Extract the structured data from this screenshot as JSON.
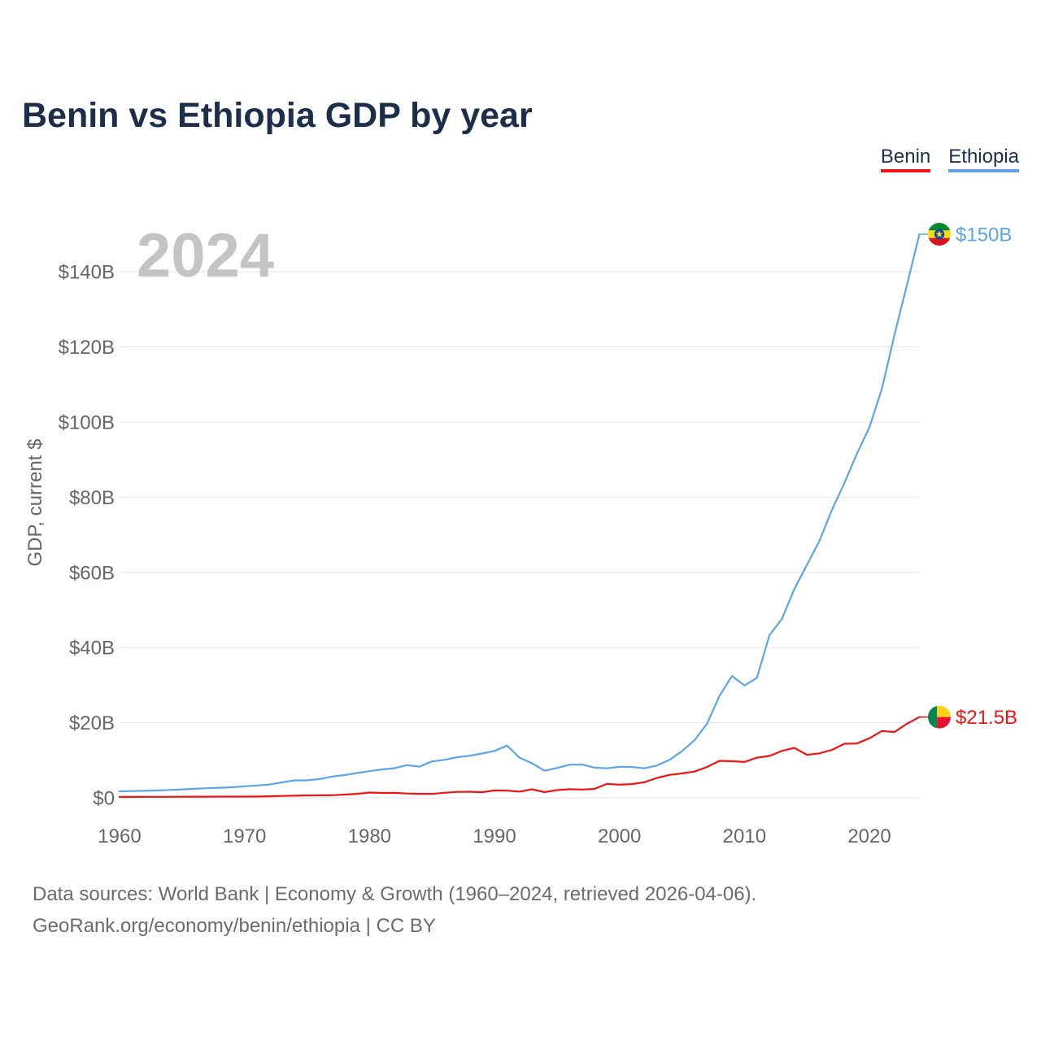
{
  "year_watermark": "2024",
  "source": {
    "line1": "Data sources: World Bank | Economy & Growth (1960–2024, retrieved 2026-04-06).",
    "line2": "GeoRank.org/economy/benin/ethiopia | CC BY"
  },
  "colors": {
    "title": "#1c2e4a",
    "tick_text": "#666666",
    "grid": "#e6e6e6",
    "watermark": "#c4c4c4",
    "source_text": "#6b6b6b"
  },
  "chart_data": {
    "type": "line",
    "title": "Benin vs Ethiopia GDP by year",
    "xlabel": "",
    "ylabel": "GDP, current $",
    "xlim": [
      1960,
      2024
    ],
    "ylim": [
      0,
      150
    ],
    "grid": true,
    "xtick_values": [
      1960,
      1970,
      1980,
      1990,
      2000,
      2010,
      2020
    ],
    "xtick_labels": [
      "1960",
      "1970",
      "1980",
      "1990",
      "2000",
      "2010",
      "2020"
    ],
    "ytick_values": [
      0,
      20,
      40,
      60,
      80,
      100,
      120,
      140
    ],
    "ytick_labels": [
      "$0",
      "$20B",
      "$40B",
      "$60B",
      "$80B",
      "$100B",
      "$120B",
      "$140B"
    ],
    "x": [
      1960,
      1961,
      1962,
      1963,
      1964,
      1965,
      1966,
      1967,
      1968,
      1969,
      1970,
      1971,
      1972,
      1973,
      1974,
      1975,
      1976,
      1977,
      1978,
      1979,
      1980,
      1981,
      1982,
      1983,
      1984,
      1985,
      1986,
      1987,
      1988,
      1989,
      1990,
      1991,
      1992,
      1993,
      1994,
      1995,
      1996,
      1997,
      1998,
      1999,
      2000,
      2001,
      2002,
      2003,
      2004,
      2005,
      2006,
      2007,
      2008,
      2009,
      2010,
      2011,
      2012,
      2013,
      2014,
      2015,
      2016,
      2017,
      2018,
      2019,
      2020,
      2021,
      2022,
      2023,
      2024
    ],
    "series": [
      {
        "name": "Benin",
        "color": "#f01414",
        "flag_icon": "benin-flag-icon",
        "end_label": "$21.5B",
        "values": [
          0.23,
          0.24,
          0.25,
          0.26,
          0.27,
          0.29,
          0.3,
          0.31,
          0.32,
          0.33,
          0.33,
          0.35,
          0.41,
          0.5,
          0.56,
          0.66,
          0.67,
          0.7,
          0.86,
          1.05,
          1.4,
          1.29,
          1.31,
          1.14,
          1.05,
          1.05,
          1.34,
          1.57,
          1.63,
          1.5,
          1.96,
          1.92,
          1.65,
          2.27,
          1.52,
          2.05,
          2.3,
          2.2,
          2.38,
          3.7,
          3.5,
          3.65,
          4.15,
          5.3,
          6.1,
          6.5,
          7.0,
          8.2,
          9.85,
          9.75,
          9.55,
          10.7,
          11.15,
          12.5,
          13.3,
          11.45,
          11.85,
          12.75,
          14.4,
          14.45,
          15.85,
          17.8,
          17.5,
          19.7,
          21.5
        ]
      },
      {
        "name": "Ethiopia",
        "color": "#5da5e6",
        "flag_icon": "ethiopia-flag-icon",
        "end_label": "$150B",
        "values": [
          1.73,
          1.8,
          1.87,
          1.95,
          2.1,
          2.25,
          2.4,
          2.55,
          2.68,
          2.82,
          3.05,
          3.3,
          3.55,
          4.1,
          4.65,
          4.65,
          5.0,
          5.65,
          6.05,
          6.6,
          7.1,
          7.55,
          7.9,
          8.7,
          8.3,
          9.7,
          10.1,
          10.8,
          11.2,
          11.8,
          12.5,
          13.9,
          10.7,
          9.2,
          7.2,
          7.95,
          8.8,
          8.85,
          8.05,
          7.85,
          8.25,
          8.2,
          7.85,
          8.6,
          10.1,
          12.4,
          15.3,
          19.7,
          27.1,
          32.4,
          29.9,
          31.95,
          43.3,
          47.65,
          55.6,
          62.0,
          68.4,
          76.6,
          83.8,
          91.6,
          98.6,
          108.9,
          123.2,
          136.4,
          150.0
        ]
      }
    ]
  }
}
